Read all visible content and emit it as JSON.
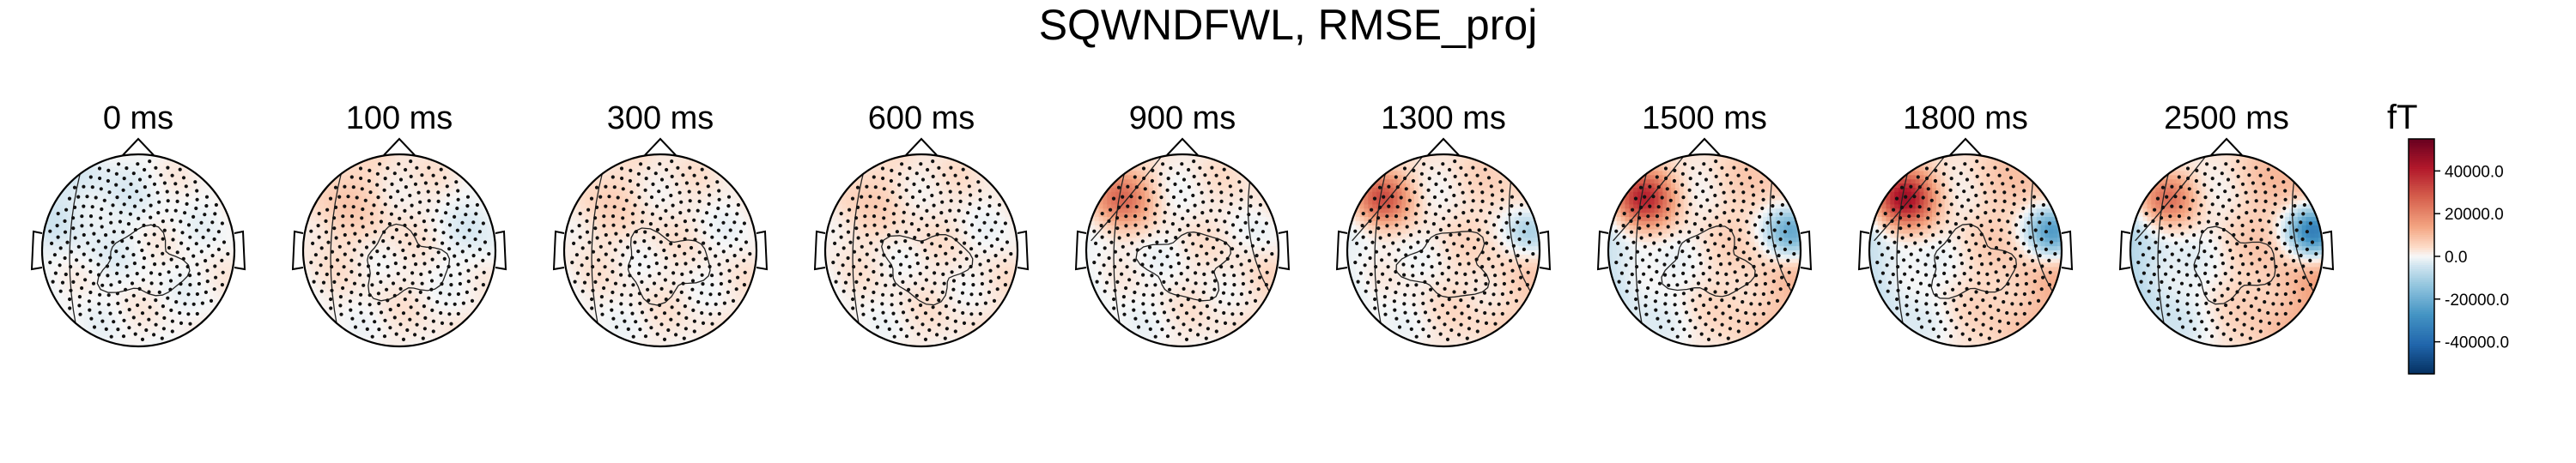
{
  "chart_data": {
    "type": "heatmap",
    "title": "SQWNDFWL, RMSE_proj",
    "panels": [
      {
        "label": "0 ms",
        "field": [
          [
            0.0,
            0.03
          ],
          [
            0.4,
            -0.02
          ],
          [
            0.0,
            -0.07
          ]
        ],
        "spread": 0.45
      },
      {
        "label": "100 ms",
        "field": [
          [
            0.0,
            0.1
          ],
          [
            0.5,
            -0.08
          ],
          [
            0.3,
            0.1
          ]
        ],
        "spread": 0.45
      },
      {
        "label": "300 ms",
        "field": [
          [
            0.0,
            0.1
          ],
          [
            0.4,
            -0.08
          ],
          [
            0.4,
            0.07
          ]
        ],
        "spread": 0.45
      },
      {
        "label": "600 ms",
        "field": [
          [
            0.0,
            0.12
          ],
          [
            0.4,
            -0.1
          ],
          [
            0.3,
            0.08
          ]
        ],
        "spread": 0.4
      },
      {
        "label": "900 ms",
        "field": [
          [
            0.0,
            0.1
          ],
          [
            0.4,
            -0.15
          ],
          [
            0.8,
            0.45
          ]
        ],
        "spread": 0.22
      },
      {
        "label": "1300 ms",
        "field": [
          [
            0.0,
            0.18
          ],
          [
            0.6,
            -0.28
          ],
          [
            0.7,
            0.55
          ]
        ],
        "spread": 0.2
      },
      {
        "label": "1500 ms",
        "field": [
          [
            0.0,
            0.18
          ],
          [
            0.9,
            -0.55
          ],
          [
            0.9,
            0.75
          ]
        ],
        "spread": 0.22
      },
      {
        "label": "1800 ms",
        "field": [
          [
            0.0,
            0.22
          ],
          [
            0.9,
            -0.65
          ],
          [
            1.0,
            0.85
          ]
        ],
        "spread": 0.22
      },
      {
        "label": "2500 ms",
        "field": [
          [
            0.0,
            0.22
          ],
          [
            1.0,
            -0.85
          ],
          [
            0.6,
            0.5
          ]
        ],
        "spread": 0.22
      }
    ],
    "colorbar": {
      "unit": "fT",
      "range": [
        -55000,
        55000
      ],
      "ticks": [
        40000,
        20000,
        0,
        -20000,
        -40000
      ],
      "tick_labels": [
        "40000.0",
        "20000.0",
        "0.0",
        "-20000.0",
        "-40000.0"
      ],
      "colormap": "RdBu_r"
    },
    "sensors": "magnetometers",
    "grid": false
  }
}
